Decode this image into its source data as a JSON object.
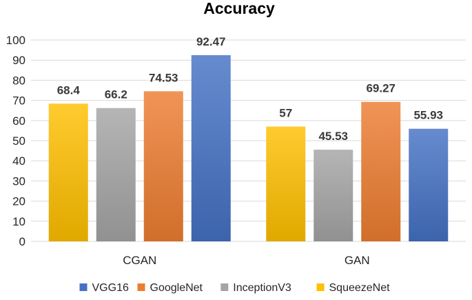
{
  "chart_data": {
    "type": "bar",
    "title": "Accuracy",
    "categories": [
      "CGAN",
      "GAN"
    ],
    "series": [
      {
        "name": "SqueezeNet",
        "values": [
          68.4,
          57
        ],
        "labels": [
          "68.4",
          "57"
        ],
        "color": "#FFC000"
      },
      {
        "name": "InceptionV3",
        "values": [
          66.2,
          45.53
        ],
        "labels": [
          "66.2",
          "45.53"
        ],
        "color": "#A5A5A5"
      },
      {
        "name": "GoogleNet",
        "values": [
          74.53,
          69.27
        ],
        "labels": [
          "74.53",
          "69.27"
        ],
        "color": "#ED7D31"
      },
      {
        "name": "VGG16",
        "values": [
          92.47,
          55.93
        ],
        "labels": [
          "92.47",
          "55.93"
        ],
        "color": "#4472C4"
      }
    ],
    "legend_order": [
      "VGG16",
      "GoogleNet",
      "InceptionV3",
      "SqueezeNet"
    ],
    "ylim": [
      0,
      100
    ],
    "yticks": [
      0,
      10,
      20,
      30,
      40,
      50,
      60,
      70,
      80,
      90,
      100
    ],
    "xlabel": "",
    "ylabel": "",
    "grid": true,
    "legend_position": "bottom"
  }
}
